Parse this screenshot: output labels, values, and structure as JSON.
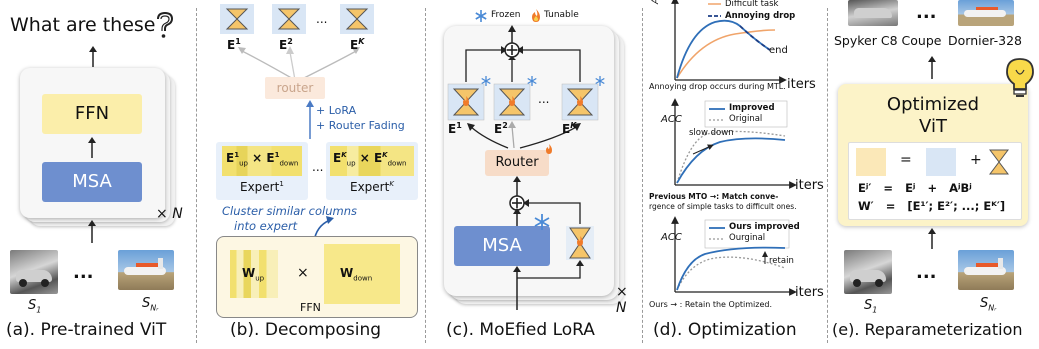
{
  "panel_a": {
    "question": "What are these",
    "ffn_label": "FFN",
    "msa_label": "MSA",
    "times": "×",
    "n_label": "N",
    "s1": "S",
    "s1_sub": "1",
    "sn": "S",
    "sn_sub": "Nᵣ",
    "dots": "...",
    "caption": "(a). Pre-trained ViT"
  },
  "panel_b": {
    "e1": "E",
    "e1_sup": "1",
    "e2": "E",
    "e2_sup": "2",
    "ek": "E",
    "ek_sup": "K",
    "dots": "...",
    "router_label": "router",
    "lora_text": "+ LoRA",
    "fading_text": "+ Router Fading",
    "expert1_label": "Expert",
    "expert1_sup": "1",
    "expertk_label": "Expert",
    "expertk_sup": "K",
    "cluster_text_1": "Cluster similar columns",
    "cluster_text_2": "into expert",
    "w_up": "W",
    "w_up_sub": "up",
    "w_down": "W",
    "w_down_sub": "down",
    "times": "×",
    "ffn_label": "FFN",
    "caption": "(b). Decomposing"
  },
  "panel_c": {
    "frozen": "Frozen",
    "tunable": "Tunable",
    "e1": "E",
    "e1_sup": "1",
    "e2": "E",
    "e2_sup": "2",
    "ek": "E",
    "ek_sup": "K",
    "dots": "...",
    "router_label": "Router",
    "msa_label": "MSA",
    "times": "×",
    "n_label": "N",
    "caption": "(c). MoEfied LoRA"
  },
  "panel_d": {
    "acc": "ACC",
    "iters": "iters",
    "chart1_legend_1": "Difficult task",
    "chart1_legend_2": "Annoying drop",
    "chart1_end": "end",
    "chart1_note": "Annoying drop occurs during MTL.",
    "chart2_legend_1": "Improved",
    "chart2_legend_2": "Original",
    "chart2_slow": "slow down",
    "chart2_note_1": "Previous MTO →: Match conve-",
    "chart2_note_2": "rgence of simple tasks to difficult ones.",
    "chart3_legend_1": "Ours improved",
    "chart3_legend_2": "Ourginal",
    "chart3_retain": "retain",
    "chart3_note": "Ours → : Retain the Optimized.",
    "caption": "(d). Optimization"
  },
  "panel_e": {
    "car1": "Spyker C8 Coupe",
    "car2": "Dornier-328",
    "dots": "...",
    "title_1": "Optimized",
    "title_2": "ViT",
    "eq": "=",
    "plus": "+",
    "row1": "Eʲ′   =   Eʲ   +   AʲBʲ",
    "row2": "W′   =   [E¹′; E²′; ...; Eᴷ′]",
    "s1": "S",
    "s1_sub": "1",
    "sn": "S",
    "sn_sub": "Nᵣ",
    "caption": "(e). Reparameterization"
  },
  "colors": {
    "ffn_fill": "#fbeeaa",
    "msa_fill": "#6e8fcf",
    "expert_fill": "#f2e06e",
    "router_fill": "#f7dcc8",
    "adapter_fill": "#f5c56a",
    "adapter_stroke": "#555555",
    "frozen_blue": "#4a8ad6",
    "line_blue": "#2f6fb8",
    "line_orange": "#f0a46a",
    "line_gray": "#999999",
    "opt_box": "#fcf3c8"
  }
}
